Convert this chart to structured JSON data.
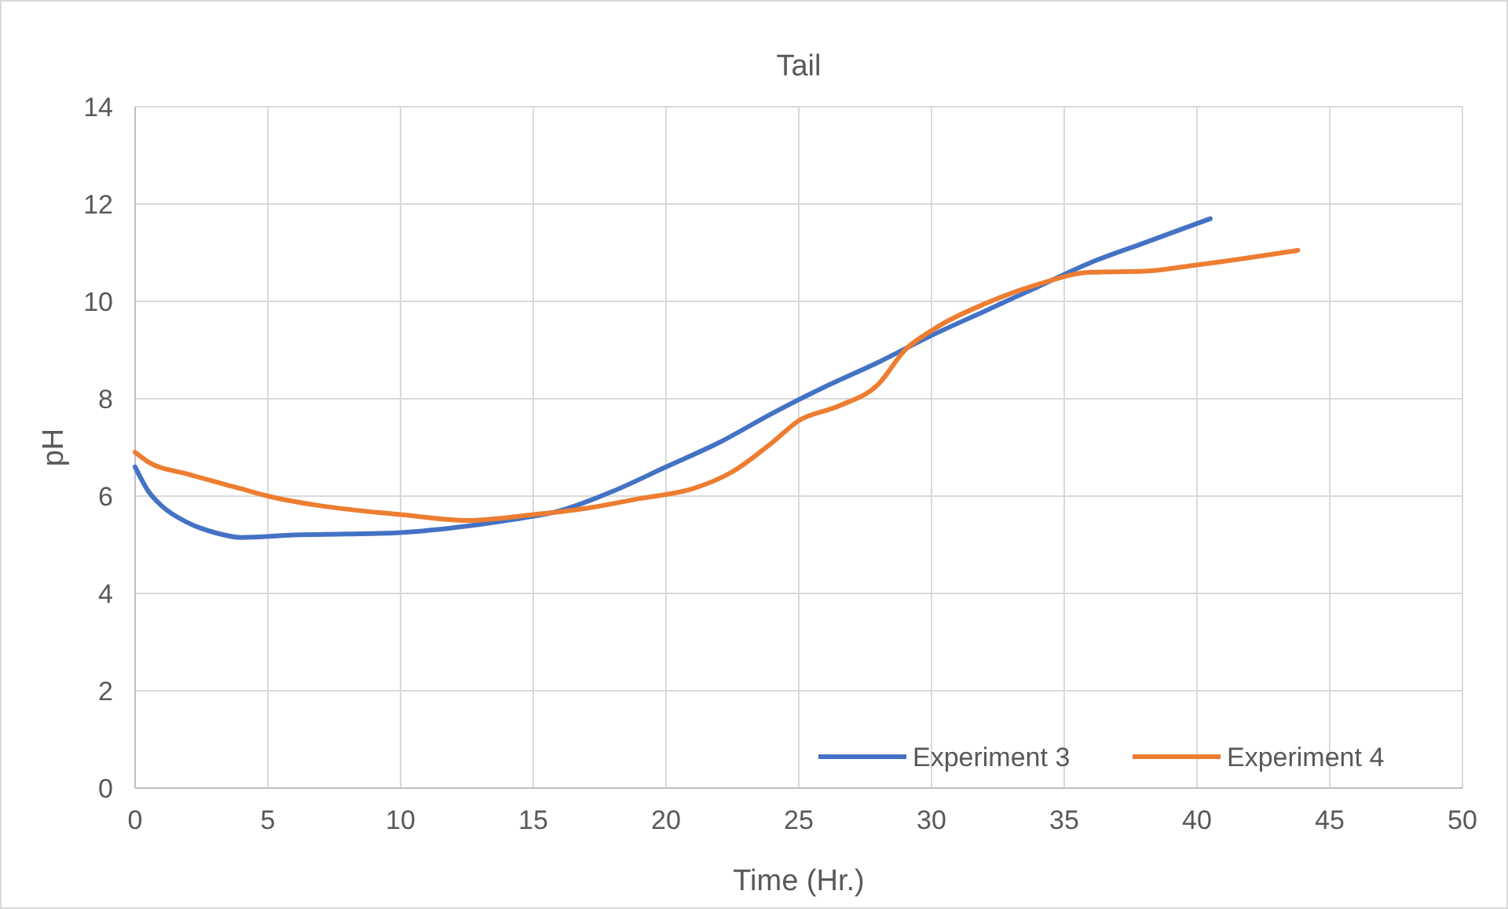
{
  "chart_data": {
    "type": "line",
    "title": "Tail",
    "xlabel": "Time (Hr.)",
    "ylabel": "pH",
    "xlim": [
      0,
      50
    ],
    "xticks": [
      0,
      5,
      10,
      15,
      20,
      25,
      30,
      35,
      40,
      45,
      50
    ],
    "ylim": [
      0,
      14
    ],
    "yticks": [
      0,
      2,
      4,
      6,
      8,
      10,
      12,
      14
    ],
    "grid": true,
    "legend": "bottom right",
    "marker": "none",
    "line_style": "solid",
    "series": [
      {
        "name": "Experiment 3",
        "color": "#4472c4",
        "x": [
          0,
          0.5,
          1,
          2,
          3,
          4,
          6,
          8,
          10,
          12,
          14,
          16,
          18,
          20,
          22,
          24,
          26,
          28,
          30,
          32,
          34,
          36,
          38,
          40.5
        ],
        "values": [
          6.6,
          6.1,
          5.8,
          5.45,
          5.25,
          5.15,
          5.2,
          5.22,
          5.25,
          5.35,
          5.5,
          5.7,
          6.1,
          6.6,
          7.1,
          7.7,
          8.25,
          8.75,
          9.3,
          9.8,
          10.3,
          10.8,
          11.2,
          11.7
        ]
      },
      {
        "name": "Experiment 4",
        "color": "#ed7d31",
        "x": [
          0,
          0.5,
          2,
          4,
          5,
          7,
          10,
          12.5,
          15,
          17,
          19,
          21,
          22.5,
          24,
          25,
          26.5,
          28,
          29,
          30,
          32,
          34,
          36,
          38,
          40,
          43.8
        ],
        "values": [
          6.9,
          6.7,
          6.45,
          6.15,
          6.0,
          5.8,
          5.62,
          5.5,
          5.62,
          5.75,
          5.95,
          6.15,
          6.5,
          7.1,
          7.55,
          7.85,
          8.3,
          9.0,
          9.4,
          9.95,
          10.35,
          10.6,
          10.62,
          10.75,
          11.05
        ]
      }
    ]
  }
}
